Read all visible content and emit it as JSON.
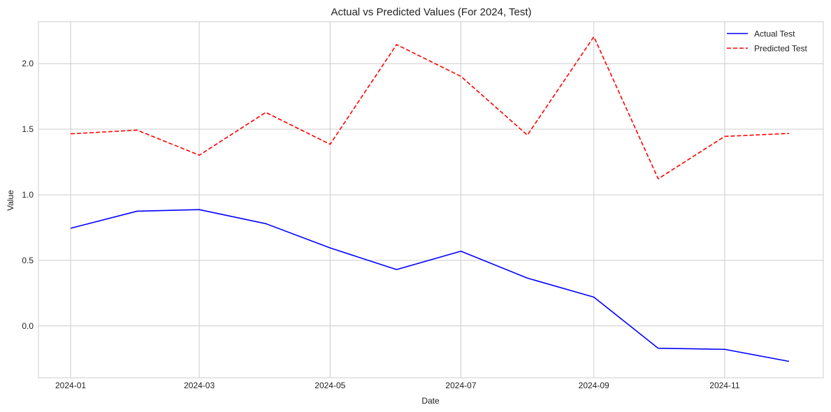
{
  "chart_data": {
    "type": "line",
    "title": "Actual vs Predicted Values (For 2024, Test)",
    "xlabel": "Date",
    "ylabel": "Value",
    "x": [
      "2024-01-01",
      "2024-02-01",
      "2024-03-01",
      "2024-04-01",
      "2024-05-01",
      "2024-06-01",
      "2024-07-01",
      "2024-08-01",
      "2024-09-01",
      "2024-10-01",
      "2024-11-01",
      "2024-12-01"
    ],
    "xlim": [
      "2023-12-17",
      "2024-12-17"
    ],
    "ylim": [
      -0.395,
      2.32
    ],
    "x_ticks": [
      {
        "value": "2024-01-01",
        "label": "2024-01"
      },
      {
        "value": "2024-03-01",
        "label": "2024-03"
      },
      {
        "value": "2024-05-01",
        "label": "2024-05"
      },
      {
        "value": "2024-07-01",
        "label": "2024-07"
      },
      {
        "value": "2024-09-01",
        "label": "2024-09"
      },
      {
        "value": "2024-11-01",
        "label": "2024-11"
      }
    ],
    "y_ticks": [
      {
        "value": 0.0,
        "label": "0.0"
      },
      {
        "value": 0.5,
        "label": "0.5"
      },
      {
        "value": 1.0,
        "label": "1.0"
      },
      {
        "value": 1.5,
        "label": "1.5"
      },
      {
        "value": 2.0,
        "label": "2.0"
      }
    ],
    "grid": true,
    "legend": "top-right",
    "series": [
      {
        "name": "Actual Test",
        "color": "#0000ff",
        "style": "solid",
        "values": [
          0.745,
          0.875,
          0.887,
          0.78,
          0.595,
          0.43,
          0.57,
          0.365,
          0.22,
          -0.17,
          -0.178,
          -0.27
        ]
      },
      {
        "name": "Predicted Test",
        "color": "#ff0000",
        "style": "dashed",
        "values": [
          1.465,
          1.493,
          1.302,
          1.628,
          1.385,
          2.145,
          1.903,
          1.455,
          2.205,
          1.122,
          1.445,
          1.468
        ]
      }
    ]
  }
}
